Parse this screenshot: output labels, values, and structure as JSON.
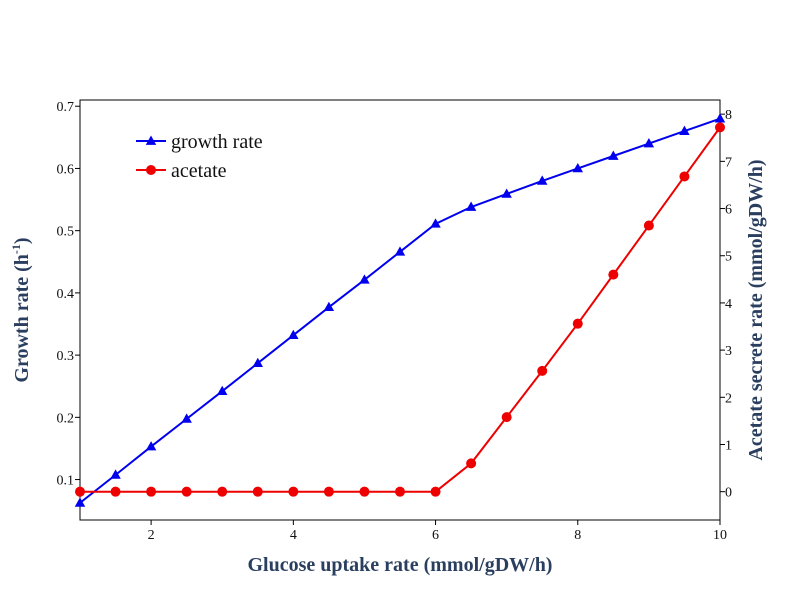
{
  "chart_data": {
    "type": "line",
    "xlabel": "Glucose uptake rate (mmol/gDW/h)",
    "ylabel": "Growth rate (h",
    "ylabel_sup": "-1",
    "ylabel_end": ")",
    "y2label": "Acetate secrete rate (mmol/gDW/h)",
    "xlim": [
      1,
      10
    ],
    "ylim": [
      0.035,
      0.71
    ],
    "y2lim": [
      -0.6,
      8.3
    ],
    "xticks": [
      2,
      4,
      6,
      8,
      10
    ],
    "yticks": [
      0.1,
      0.2,
      0.3,
      0.4,
      0.5,
      0.6,
      0.7
    ],
    "y2ticks": [
      0,
      1,
      2,
      3,
      4,
      5,
      6,
      7,
      8
    ],
    "grid": false,
    "legend_position": "top-left",
    "x": [
      1,
      1.5,
      2,
      2.5,
      3,
      3.5,
      4,
      4.5,
      5,
      5.5,
      6,
      6.5,
      7,
      7.5,
      8,
      8.5,
      9,
      9.5,
      10
    ],
    "series": [
      {
        "name": "growth rate",
        "axis": "left",
        "color": "#0000ee",
        "marker": "triangle",
        "values": [
          0.0625,
          0.1075,
          0.153,
          0.1975,
          0.242,
          0.287,
          0.332,
          0.377,
          0.421,
          0.466,
          0.511,
          0.538,
          0.559,
          0.58,
          0.6,
          0.62,
          0.64,
          0.66,
          0.68
        ]
      },
      {
        "name": "acetate",
        "axis": "right",
        "color": "#ee0000",
        "marker": "circle",
        "values": [
          0,
          0,
          0,
          0,
          0,
          0,
          0,
          0,
          0,
          0,
          0,
          0.6,
          1.58,
          2.56,
          3.56,
          4.6,
          5.64,
          6.68,
          7.72
        ]
      }
    ]
  }
}
